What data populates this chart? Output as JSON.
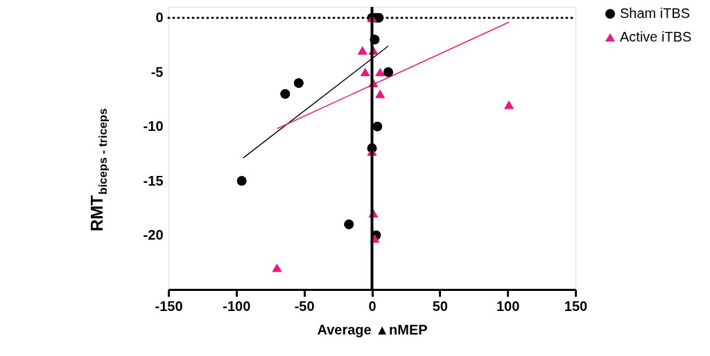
{
  "chart_data": {
    "type": "scatter",
    "xlabel": "Average ▲nMEP",
    "ylabel": "RMT$_{biceps - triceps}$",
    "xlim": [
      -150,
      150
    ],
    "xticks": [
      -150,
      -100,
      -50,
      0,
      50,
      100,
      150
    ],
    "ylim": [
      -25,
      1
    ],
    "yticks": [
      0,
      -5,
      -10,
      -15,
      -20
    ],
    "grid": false,
    "legend": "top right",
    "ref_lines": [
      {
        "axis": "y",
        "value": 0,
        "line_style": "dotted",
        "color": "#000000"
      }
    ],
    "series": [
      {
        "name": "Sham iTBS",
        "color": "#000000",
        "marker": "circle",
        "x": [
          0,
          3,
          5,
          2,
          12,
          -64,
          -54,
          4,
          0,
          -96,
          -17,
          3
        ],
        "values": [
          0,
          0,
          0,
          -2,
          -5,
          -7,
          -6,
          -10,
          -12,
          -15,
          -19,
          -20
        ]
      },
      {
        "name": "Active iTBS",
        "color": "#f0187f",
        "marker": "triangle",
        "x": [
          0,
          -7,
          1,
          -5,
          6,
          1,
          6,
          0,
          1,
          2,
          -70,
          101
        ],
        "values": [
          0,
          -3,
          -3,
          -5,
          -5,
          -6,
          -7,
          -12.3,
          -18,
          -20.3,
          -23,
          -8
        ]
      },
      {
        "type": "line",
        "color": "#000000",
        "marker": "none",
        "x": [
          -95,
          12
        ],
        "values": [
          -12.9,
          -2.6
        ]
      },
      {
        "type": "line",
        "color": "#f0187f",
        "marker": "none",
        "x": [
          -70,
          101
        ],
        "values": [
          -10.2,
          -0.4
        ]
      }
    ]
  }
}
